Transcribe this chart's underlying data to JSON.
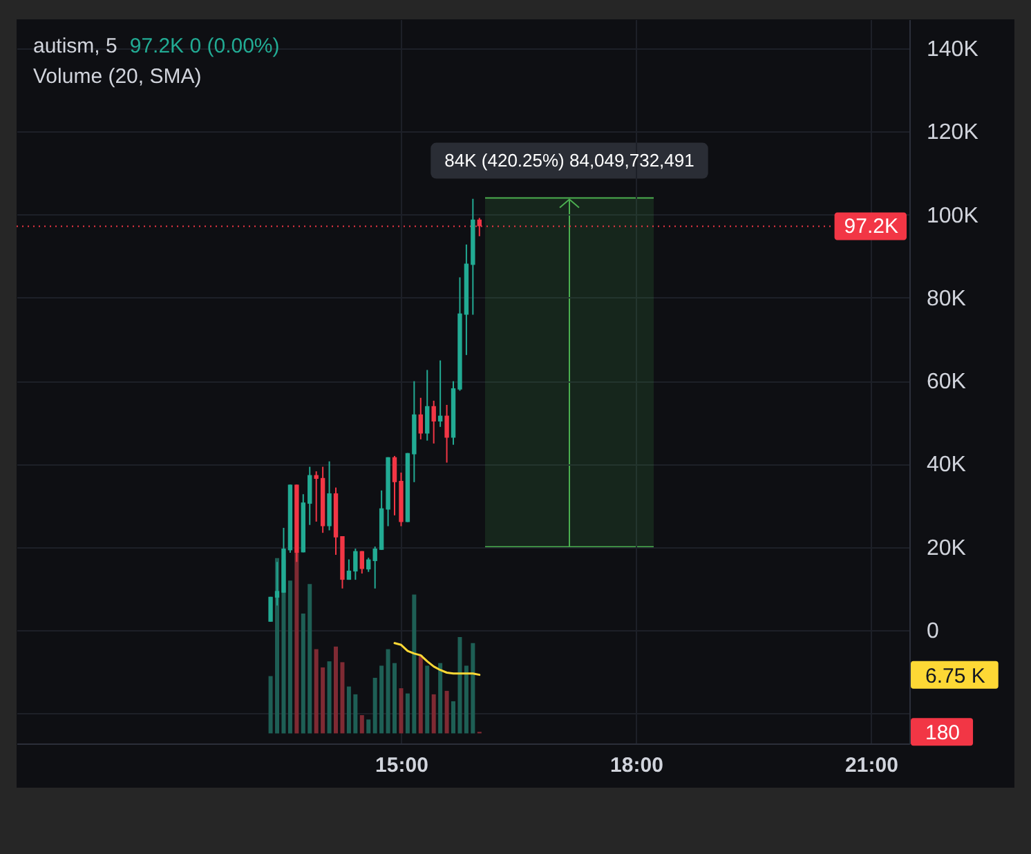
{
  "chart_data": {
    "type": "candlestick",
    "title": "autism, 5",
    "subtitle": "97.2K 0 (0.00%)",
    "x": [
      13.3333,
      13.4167,
      13.5,
      13.5833,
      13.6667,
      13.75,
      13.8333,
      13.9167,
      14,
      14.0833,
      14.1667,
      14.25,
      14.3333,
      14.4167,
      14.5,
      14.5833,
      14.6667,
      14.75,
      14.8333,
      14.9167,
      15,
      15.0833,
      15.1667,
      15.25,
      15.3333,
      15.4167,
      15.5,
      15.5833,
      15.6667,
      15.75,
      15.8333,
      15.9167,
      16
    ],
    "ohlc": [
      [
        2000,
        8000,
        2000,
        8000
      ],
      [
        7800,
        16400,
        5900,
        9400
      ],
      [
        9000,
        24600,
        9000,
        19600
      ],
      [
        19200,
        35000,
        18600,
        35000
      ],
      [
        35000,
        35000,
        16400,
        18600
      ],
      [
        18700,
        32700,
        18700,
        30700
      ],
      [
        30400,
        39300,
        25300,
        37300
      ],
      [
        37300,
        38200,
        26100,
        36400
      ],
      [
        36600,
        39300,
        23400,
        25000
      ],
      [
        25000,
        40600,
        24000,
        32900
      ],
      [
        32900,
        34300,
        18100,
        22300
      ],
      [
        22600,
        22600,
        10000,
        12100
      ],
      [
        12100,
        17000,
        12100,
        14300
      ],
      [
        14100,
        19600,
        12100,
        19000
      ],
      [
        19000,
        19000,
        13600,
        14700
      ],
      [
        14600,
        17400,
        14000,
        17000
      ],
      [
        16600,
        20100,
        10000,
        19600
      ],
      [
        19300,
        33600,
        19300,
        29300
      ],
      [
        29000,
        41600,
        25000,
        41600
      ],
      [
        41600,
        41900,
        27600,
        35600
      ],
      [
        35900,
        37900,
        25000,
        26000
      ],
      [
        26000,
        42600,
        26000,
        42600
      ],
      [
        42300,
        59900,
        35600,
        51900
      ],
      [
        51900,
        55900,
        45900,
        47300
      ],
      [
        47300,
        62600,
        45600,
        53900
      ],
      [
        53900,
        55200,
        44900,
        50200
      ],
      [
        50200,
        64900,
        48900,
        51600
      ],
      [
        51600,
        54200,
        40300,
        46300
      ],
      [
        46300,
        59900,
        44600,
        58200
      ],
      [
        57900,
        84900,
        57600,
        76200
      ],
      [
        75900,
        92800,
        66200,
        88200
      ],
      [
        87900,
        103800,
        75900,
        98800
      ],
      [
        98800,
        99200,
        94800,
        97200
      ]
    ],
    "colors": [
      "#22ab94",
      "#22ab94",
      "#22ab94",
      "#22ab94",
      "#f23645",
      "#22ab94",
      "#22ab94",
      "#f23645",
      "#f23645",
      "#22ab94",
      "#f23645",
      "#f23645",
      "#22ab94",
      "#22ab94",
      "#f23645",
      "#22ab94",
      "#22ab94",
      "#22ab94",
      "#22ab94",
      "#f23645",
      "#f23645",
      "#22ab94",
      "#22ab94",
      "#f23645",
      "#22ab94",
      "#f23645",
      "#22ab94",
      "#f23645",
      "#22ab94",
      "#22ab94",
      "#22ab94",
      "#22ab94",
      "#f23645"
    ],
    "series": [
      {
        "type": "bar",
        "axis": "y2",
        "x": [
          13.3333,
          13.4167,
          13.5,
          13.5833,
          13.6667,
          13.75,
          13.8333,
          13.9167,
          14,
          14.0833,
          14.1667,
          14.25,
          14.3333,
          14.4167,
          14.5,
          14.5833,
          14.6667,
          14.75,
          14.8333,
          14.9167,
          15,
          15.0833,
          15.1667,
          15.25,
          15.3333,
          15.4167,
          15.5,
          15.5833,
          15.6667,
          15.75,
          15.8333,
          15.9167,
          16
        ],
        "values": [
          6600,
          20200,
          20000,
          17600,
          20800,
          13800,
          17200,
          9700,
          7600,
          8300,
          10000,
          8200,
          5400,
          4500,
          2100,
          1600,
          6400,
          7800,
          9700,
          8100,
          5200,
          4600,
          16000,
          9000,
          7800,
          4500,
          8100,
          4900,
          3700,
          11100,
          7800,
          10400,
          180
        ],
        "colors": [
          "#1e5f55",
          "#1e5f55",
          "#1e5f55",
          "#1e5f55",
          "#7f2a33",
          "#1e5f55",
          "#1e5f55",
          "#7f2a33",
          "#7f2a33",
          "#1e5f55",
          "#7f2a33",
          "#7f2a33",
          "#1e5f55",
          "#1e5f55",
          "#7f2a33",
          "#1e5f55",
          "#1e5f55",
          "#1e5f55",
          "#1e5f55",
          "#1e5f55",
          "#7f2a33",
          "#1e5f55",
          "#1e5f55",
          "#7f2a33",
          "#1e5f55",
          "#7f2a33",
          "#1e5f55",
          "#7f2a33",
          "#1e5f55",
          "#1e5f55",
          "#1e5f55",
          "#1e5f55",
          "#7f2a33"
        ]
      },
      {
        "type": "line",
        "axis": "y2",
        "color": "#fdd835",
        "x": [
          14.9167,
          15,
          15.0833,
          15.1667,
          15.25,
          15.3333,
          15.4167,
          15.5,
          15.5833,
          15.6667,
          15.75,
          15.8333,
          15.9167,
          16
        ],
        "values": [
          10400,
          10200,
          9500,
          9200,
          9000,
          8300,
          7700,
          7300,
          7000,
          6900,
          6900,
          6900,
          6900,
          6750
        ]
      }
    ],
    "xlim": [
      10.09,
      21.49
    ],
    "xticks": [
      {
        "value": 15,
        "label": "15:00"
      },
      {
        "value": 18,
        "label": "18:00"
      },
      {
        "value": 21,
        "label": "21:00"
      }
    ],
    "ylim": [
      -27300,
      147000
    ],
    "yticks": [
      {
        "value": -20000,
        "label": null
      },
      0,
      {
        "value": 20000,
        "label": "20K"
      },
      {
        "value": 40000,
        "label": "40K"
      },
      {
        "value": 60000,
        "label": "60K"
      },
      {
        "value": 80000,
        "label": "80K"
      },
      {
        "value": 100000,
        "label": "100K"
      },
      {
        "value": 120000,
        "label": "120K"
      },
      {
        "value": 140000,
        "label": "140K"
      }
    ],
    "y2lim": [
      -1160,
      82260
    ],
    "y2ticks": [
      {
        "value": 6750,
        "label": "6.75 K"
      },
      180
    ],
    "ref_lines": [
      {
        "axis": "y",
        "value": 97200,
        "label": "97.2K",
        "color": "#f23645",
        "line_style": "dotted"
      }
    ],
    "bands": [
      {
        "axis": "y",
        "from": 20000,
        "to": 104000,
        "label": "84K (420.25%) 84,049,732,491",
        "color": "#4caf50"
      }
    ],
    "annotations": [
      "Volume (20, SMA)"
    ],
    "grid": true
  }
}
